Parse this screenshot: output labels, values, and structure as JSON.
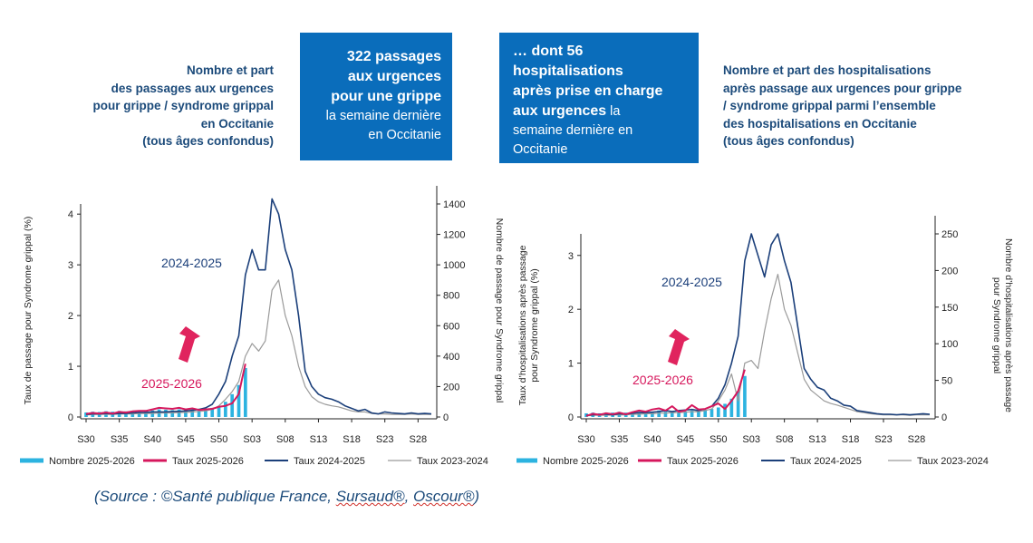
{
  "left_headline": [
    "Nombre et part",
    "des passages aux urgences",
    "pour grippe / syndrome grippal",
    "en Occitanie",
    "(tous âges confondus)"
  ],
  "right_headline": [
    "Nombre et part des hospitalisations",
    "après passage aux urgences pour grippe",
    "/ syndrome grippal parmi l’ensemble",
    "des hospitalisations en Occitanie",
    "(tous âges confondus)"
  ],
  "box1": {
    "strong_lines": [
      "322 passages",
      "aux urgences",
      "pour une grippe"
    ],
    "norm_lines": [
      "la semaine dernière",
      "en Occitanie"
    ]
  },
  "box2": {
    "line1": "… dont 56",
    "line2": "hospitalisations",
    "line3": "après prise en charge",
    "line4_strong": "aux urgences",
    "line4_norm": " la",
    "line5": "semaine dernière en",
    "line6": "Occitanie"
  },
  "source": {
    "prefix": "(Source : ©Santé publique France, ",
    "sursaud": "Sursaud®",
    "sep": ", ",
    "oscour": "Oscour®",
    "suffix": ")"
  },
  "colors": {
    "bars": "#2cb3e0",
    "taux_2526": "#d6175c",
    "taux_2425": "#1b3f7a",
    "taux_2324": "#9a9a9a",
    "arrow": "#e0245e",
    "box_bg": "#0a6dbb",
    "headline": "#1b4a7a"
  },
  "chart_data": [
    {
      "type": "line",
      "weeks_tick_labels": [
        "S30",
        "S35",
        "S40",
        "S45",
        "S50",
        "S03",
        "S08",
        "S13",
        "S18",
        "S23",
        "S28"
      ],
      "ylabel": "Taux de passage pour Syndrome grippal (%)",
      "y2label_lines": [
        "Nombre de passage  pour Syndrome grippal"
      ],
      "ylim": [
        0,
        4.2
      ],
      "yticks": [
        0,
        1,
        2,
        3,
        4
      ],
      "y2lim": [
        0,
        1400
      ],
      "y2ticks": [
        0,
        200,
        400,
        600,
        800,
        1000,
        1200,
        1400
      ],
      "label_2425": "2024-2025",
      "label_2526": "2025-2026",
      "legend": [
        "Nombre 2025-2026",
        "Taux 2025-2026",
        "Taux 2024-2025",
        "Taux 2023-2024"
      ],
      "bars_nombre_2526": [
        30,
        35,
        33,
        38,
        35,
        40,
        37,
        42,
        40,
        45,
        43,
        50,
        48,
        45,
        50,
        48,
        52,
        50,
        55,
        60,
        70,
        100,
        150,
        210,
        322
      ],
      "taux_2526": [
        0.06,
        0.08,
        0.07,
        0.09,
        0.07,
        0.1,
        0.09,
        0.11,
        0.12,
        0.12,
        0.15,
        0.18,
        0.17,
        0.16,
        0.18,
        0.15,
        0.17,
        0.14,
        0.15,
        0.16,
        0.2,
        0.22,
        0.27,
        0.45,
        1.05
      ],
      "taux_2425": [
        0.05,
        0.06,
        0.06,
        0.07,
        0.06,
        0.07,
        0.07,
        0.08,
        0.09,
        0.09,
        0.1,
        0.1,
        0.1,
        0.11,
        0.11,
        0.12,
        0.13,
        0.15,
        0.18,
        0.25,
        0.45,
        0.7,
        1.2,
        1.6,
        2.8,
        3.3,
        2.9,
        2.9,
        4.3,
        4.0,
        3.3,
        2.9,
        2.0,
        0.9,
        0.6,
        0.45,
        0.38,
        0.35,
        0.3,
        0.22,
        0.17,
        0.12,
        0.15,
        0.08,
        0.06,
        0.1,
        0.08,
        0.07,
        0.06,
        0.08,
        0.06,
        0.07,
        0.06
      ],
      "taux_2324": [
        0.04,
        0.05,
        0.05,
        0.05,
        0.05,
        0.06,
        0.06,
        0.06,
        0.07,
        0.07,
        0.07,
        0.08,
        0.08,
        0.08,
        0.09,
        0.09,
        0.1,
        0.11,
        0.12,
        0.15,
        0.22,
        0.35,
        0.5,
        0.7,
        1.2,
        1.45,
        1.3,
        1.5,
        2.5,
        2.7,
        2.0,
        1.6,
        1.0,
        0.6,
        0.4,
        0.3,
        0.25,
        0.22,
        0.2,
        0.16,
        0.12,
        0.1,
        0.1,
        0.07,
        0.06,
        0.06,
        0.05,
        0.05,
        0.05,
        0.06,
        0.05,
        0.05,
        0.05
      ]
    },
    {
      "type": "line",
      "weeks_tick_labels": [
        "S30",
        "S35",
        "S40",
        "S45",
        "S50",
        "S03",
        "S08",
        "S13",
        "S18",
        "S23",
        "S28"
      ],
      "ylabel_lines": [
        "Taux d’hospitalisations après passage",
        "pour Syndrome grippal (%)"
      ],
      "y2label_lines": [
        "Nombre d’hospitalisations après passage",
        "pour Syndrome grippal"
      ],
      "ylim": [
        0,
        3.4
      ],
      "yticks": [
        0,
        1,
        2,
        3
      ],
      "y2lim": [
        0,
        250
      ],
      "y2ticks": [
        0,
        50,
        100,
        150,
        200,
        250
      ],
      "label_2425": "2024-2025",
      "label_2526": "2025-2026",
      "legend": [
        "Nombre 2025-2026",
        "Taux 2025-2026",
        "Taux 2024-2025",
        "Taux 2023-2024"
      ],
      "bars_nombre_2526": [
        5,
        6,
        5,
        6,
        6,
        7,
        6,
        7,
        7,
        8,
        7,
        9,
        8,
        8,
        9,
        8,
        9,
        9,
        10,
        11,
        13,
        18,
        25,
        35,
        56
      ],
      "taux_2526": [
        0.02,
        0.06,
        0.04,
        0.07,
        0.05,
        0.08,
        0.05,
        0.09,
        0.12,
        0.1,
        0.14,
        0.16,
        0.12,
        0.2,
        0.1,
        0.12,
        0.22,
        0.14,
        0.15,
        0.2,
        0.25,
        0.15,
        0.3,
        0.48,
        0.88
      ],
      "taux_2425": [
        0.03,
        0.04,
        0.05,
        0.05,
        0.04,
        0.06,
        0.05,
        0.07,
        0.08,
        0.08,
        0.09,
        0.1,
        0.12,
        0.1,
        0.12,
        0.13,
        0.14,
        0.12,
        0.15,
        0.2,
        0.35,
        0.6,
        1.0,
        1.5,
        2.9,
        3.4,
        3.0,
        2.6,
        3.2,
        3.4,
        2.9,
        2.5,
        1.7,
        0.9,
        0.7,
        0.55,
        0.5,
        0.35,
        0.3,
        0.22,
        0.2,
        0.12,
        0.1,
        0.08,
        0.06,
        0.05,
        0.05,
        0.04,
        0.05,
        0.04,
        0.05,
        0.06,
        0.05
      ],
      "taux_2324": [
        0.02,
        0.03,
        0.03,
        0.03,
        0.04,
        0.04,
        0.04,
        0.05,
        0.05,
        0.06,
        0.06,
        0.07,
        0.07,
        0.08,
        0.08,
        0.09,
        0.1,
        0.1,
        0.12,
        0.15,
        0.3,
        0.5,
        0.8,
        0.3,
        1.0,
        1.05,
        0.9,
        1.6,
        2.2,
        2.65,
        2.0,
        1.7,
        1.2,
        0.7,
        0.5,
        0.4,
        0.3,
        0.25,
        0.22,
        0.18,
        0.14,
        0.1,
        0.08,
        0.06,
        0.05,
        0.04,
        0.04,
        0.04,
        0.04,
        0.03,
        0.04,
        0.04,
        0.04
      ]
    }
  ]
}
